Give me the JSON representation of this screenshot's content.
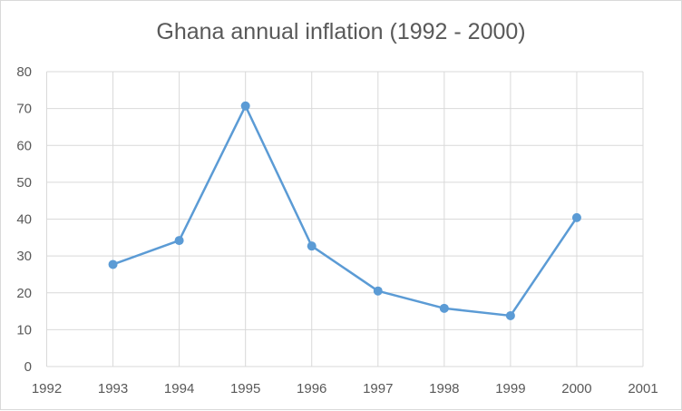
{
  "chart_data": {
    "type": "line",
    "title": "Ghana annual inflation (1992 - 2000)",
    "xlabel": "",
    "ylabel": "",
    "xlim": [
      1992,
      2001
    ],
    "ylim": [
      0,
      80
    ],
    "x_ticks": [
      "1992",
      "1993",
      "1994",
      "1995",
      "1996",
      "1997",
      "1998",
      "1999",
      "2000",
      "2001"
    ],
    "y_ticks": [
      "0",
      "10",
      "20",
      "30",
      "40",
      "50",
      "60",
      "70",
      "80"
    ],
    "grid": "both",
    "legend": "none",
    "series": [
      {
        "color": "#5b9bd5",
        "markers": true,
        "x": [
          1993,
          1994,
          1995,
          1996,
          1997,
          1998,
          1999,
          2000
        ],
        "y": [
          27.7,
          34.2,
          70.7,
          32.7,
          20.5,
          15.8,
          13.8,
          40.4
        ]
      }
    ]
  }
}
